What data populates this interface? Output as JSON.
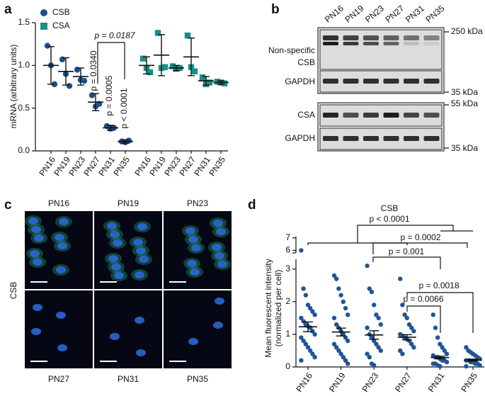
{
  "panels": [
    "a",
    "b",
    "c",
    "d"
  ],
  "chart_data": [
    {
      "type": "scatter",
      "y_label": "mRNA (arbitrary units)",
      "categories": [
        "PN16",
        "PN19",
        "PN23",
        "PN27",
        "PN31",
        "PN35"
      ],
      "ylim": [
        0,
        1.5
      ],
      "yticks": [
        {
          "value": 0,
          "label": "0.0"
        },
        {
          "value": 0.5,
          "label": "0.5"
        },
        {
          "value": 1,
          "label": "1.0"
        },
        {
          "value": 1.5,
          "label": "1.5"
        }
      ],
      "legend": "upper left",
      "series": [
        {
          "name": "CSB",
          "color": "#1d4f8f",
          "marker": "circle",
          "values": [
            1.0,
            0.93,
            0.87,
            0.57,
            0.27,
            0.11
          ],
          "errors": [
            0.22,
            0.16,
            0.1,
            0.1,
            0.03,
            0.02
          ],
          "points": [
            [
              1.23,
              1.0,
              0.78
            ],
            [
              1.07,
              0.9,
              0.76
            ],
            [
              0.95,
              0.83,
              0.82
            ],
            [
              0.65,
              0.52,
              0.55
            ],
            [
              0.29,
              0.26,
              0.27
            ],
            [
              0.11,
              0.1,
              0.12
            ]
          ]
        },
        {
          "name": "CSA",
          "color": "#1a8f8a",
          "marker": "square",
          "values": [
            1.0,
            1.12,
            0.97,
            1.1,
            0.82,
            0.8
          ],
          "errors": [
            0.1,
            0.24,
            0.03,
            0.22,
            0.05,
            0.02
          ],
          "points": [
            [
              1.08,
              0.97,
              0.92
            ],
            [
              1.38,
              0.97,
              0.98
            ],
            [
              0.99,
              0.96,
              0.97
            ],
            [
              1.35,
              0.98,
              0.93
            ],
            [
              0.86,
              0.78,
              0.8
            ],
            [
              0.81,
              0.8,
              0.79
            ]
          ]
        }
      ],
      "annotations": [
        "p = 0.0187",
        "p = 0.0340",
        "p = 0.0005",
        "p < 0.0001"
      ]
    },
    {
      "type": "scatter",
      "title": "CSB",
      "y_label": [
        "Mean fluorescent intensity",
        "(normalized per cell)"
      ],
      "categories": [
        "PN16",
        "PN19",
        "PN23",
        "PN27",
        "PN31",
        "PN35"
      ],
      "ylim": [
        0,
        3.3
      ],
      "yticks": [
        0,
        1,
        2,
        3
      ],
      "y_upper_lim": [
        5.8,
        7.1
      ],
      "y_upper_ticks": [
        6,
        7
      ],
      "series": [
        {
          "color": "#1f5596",
          "marker": "circle",
          "values": [
            1.23,
            1.07,
            0.98,
            0.91,
            0.29,
            0.21
          ],
          "errors": [
            0.15,
            0.12,
            0.13,
            0.08,
            0.04,
            0.03
          ],
          "points": [
            [
              6.0,
              2.4,
              2.2,
              1.9,
              1.8,
              1.7,
              1.6,
              1.5,
              1.4,
              1.3,
              1.25,
              1.2,
              1.1,
              1.0,
              0.9,
              0.8,
              0.7,
              0.6,
              0.5,
              0.4,
              0.3,
              0.2
            ],
            [
              2.8,
              2.7,
              2.4,
              2.2,
              2.0,
              1.8,
              1.6,
              1.5,
              1.3,
              1.2,
              1.1,
              1.0,
              0.9,
              0.8,
              0.7,
              0.6,
              0.5,
              0.4,
              0.3,
              0.2,
              0.1
            ],
            [
              3.1,
              2.4,
              2.3,
              1.9,
              1.6,
              1.5,
              1.3,
              1.2,
              1.0,
              0.9,
              0.8,
              0.7,
              0.6,
              0.5,
              0.4,
              0.3,
              0.1,
              0.05
            ],
            [
              2.7,
              1.9,
              1.6,
              1.5,
              1.3,
              1.2,
              1.1,
              1.0,
              0.95,
              0.9,
              0.85,
              0.8,
              0.7,
              0.6,
              0.5,
              0.4
            ],
            [
              1.6,
              1.2,
              0.9,
              0.7,
              0.6,
              0.5,
              0.4,
              0.35,
              0.3,
              0.3,
              0.25,
              0.2,
              0.2,
              0.15,
              0.1,
              0.1,
              0.05,
              0.02
            ],
            [
              0.6,
              0.5,
              0.45,
              0.4,
              0.35,
              0.3,
              0.25,
              0.2,
              0.2,
              0.15,
              0.15,
              0.1,
              0.1,
              0.05,
              0.02
            ]
          ]
        }
      ],
      "annotations": [
        "p < 0.0001",
        "p = 0.0002",
        "p = 0.001",
        "p = 0.0018",
        "p = 0.0066"
      ]
    }
  ],
  "blot": {
    "lanes": [
      "PN16",
      "PN19",
      "PN23",
      "PN27",
      "PN31",
      "PN35"
    ],
    "row_labels": [
      "Non-specific",
      "CSB",
      "GAPDH",
      "CSA",
      "GAPDH"
    ],
    "markers": [
      "250 kDa",
      "35 kDa",
      "55 kDa",
      "35 kDa"
    ]
  },
  "micrographs": {
    "labels": [
      "PN16",
      "PN19",
      "PN23",
      "PN27",
      "PN31",
      "PN35"
    ],
    "stain": "CSB"
  }
}
